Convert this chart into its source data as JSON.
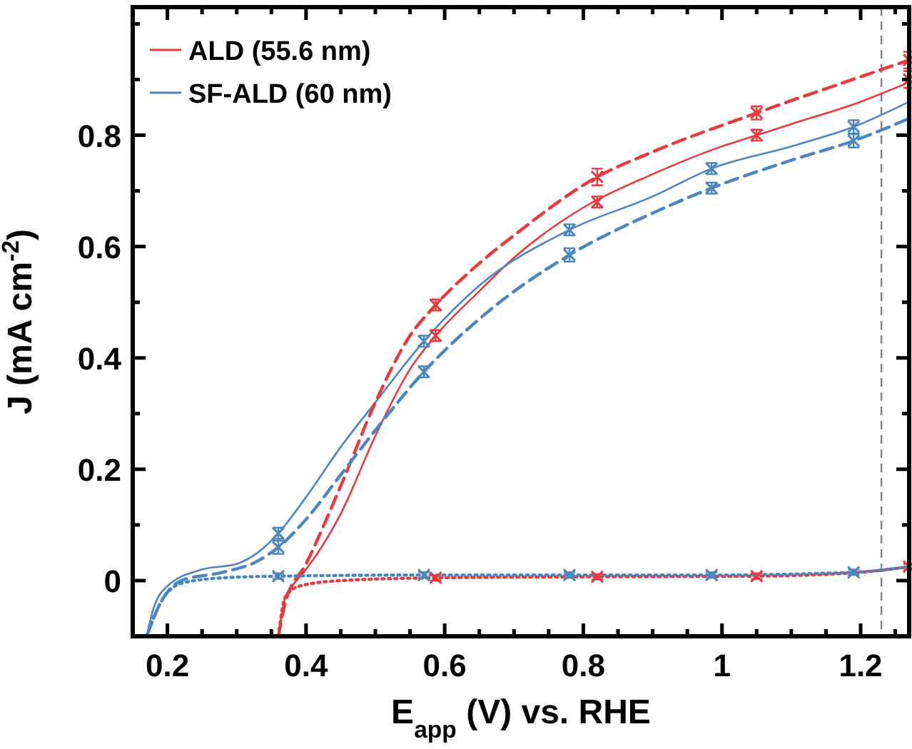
{
  "chart_data": {
    "type": "line",
    "xlabel": "E$_{app}$ (V) vs. RHE",
    "ylabel": "J (mA cm$^{-2}$)",
    "xlim": [
      0.15,
      1.27
    ],
    "ylim": [
      -0.1,
      1.03
    ],
    "xticks": [
      {
        "value": 0.15,
        "label": null
      },
      0.2,
      {
        "value": 0.25,
        "label": null
      },
      {
        "value": 0.3,
        "label": null
      },
      {
        "value": 0.35,
        "label": null
      },
      0.4,
      {
        "value": 0.45,
        "label": null
      },
      {
        "value": 0.5,
        "label": null
      },
      {
        "value": 0.55,
        "label": null
      },
      0.6,
      {
        "value": 0.65,
        "label": null
      },
      {
        "value": 0.7,
        "label": null
      },
      {
        "value": 0.75,
        "label": null
      },
      0.8,
      {
        "value": 0.85,
        "label": null
      },
      {
        "value": 0.9,
        "label": null
      },
      {
        "value": 0.95,
        "label": null
      },
      1,
      {
        "value": 1.05,
        "label": null
      },
      {
        "value": 1.1,
        "label": null
      },
      {
        "value": 1.15,
        "label": null
      },
      1.2,
      {
        "value": 1.25,
        "label": null
      }
    ],
    "yticks": [
      {
        "value": -0.1,
        "label": null
      },
      0,
      {
        "value": 0.1,
        "label": null
      },
      0.2,
      {
        "value": 0.3,
        "label": null
      },
      0.4,
      {
        "value": 0.5,
        "label": null
      },
      0.6,
      {
        "value": 0.7,
        "label": null
      },
      0.8,
      {
        "value": 0.9,
        "label": null
      },
      {
        "value": 1.0,
        "label": null
      }
    ],
    "legend": "top left",
    "grid": false,
    "ref_lines": [
      {
        "axis": "x",
        "value": 1.23,
        "color": "#808080",
        "line_style": "dashed"
      }
    ],
    "series": [
      {
        "name": "ALD (55.6 nm)",
        "color": "#e8393d",
        "line_style": "solid",
        "x": [
          0.36,
          0.37,
          0.38,
          0.4,
          0.45,
          0.5,
          0.55,
          0.587,
          0.65,
          0.7,
          0.8,
          0.9,
          1.0,
          1.05,
          1.1,
          1.2,
          1.27
        ],
        "values": [
          -0.1,
          -0.03,
          -0.01,
          0.02,
          0.12,
          0.26,
          0.38,
          0.44,
          0.52,
          0.58,
          0.67,
          0.73,
          0.78,
          0.8,
          0.82,
          0.86,
          0.895
        ]
      },
      {
        "name": "SF-ALD (60 nm)",
        "color": "#4a86c0",
        "line_style": "solid",
        "x": [
          0.17,
          0.18,
          0.2,
          0.25,
          0.3,
          0.33,
          0.36,
          0.4,
          0.45,
          0.5,
          0.57,
          0.65,
          0.78,
          0.9,
          0.985,
          1.1,
          1.19,
          1.27
        ],
        "values": [
          -0.1,
          -0.05,
          -0.01,
          0.02,
          0.03,
          0.05,
          0.085,
          0.15,
          0.24,
          0.32,
          0.43,
          0.53,
          0.63,
          0.69,
          0.74,
          0.78,
          0.815,
          0.86
        ]
      },
      {
        "color": "#e8393d",
        "line_style": "dashed",
        "x": [
          0.36,
          0.37,
          0.4,
          0.45,
          0.5,
          0.55,
          0.587,
          0.65,
          0.7,
          0.82,
          0.9,
          1.05,
          1.2,
          1.27
        ],
        "values": [
          -0.1,
          -0.04,
          0.03,
          0.17,
          0.32,
          0.44,
          0.495,
          0.57,
          0.62,
          0.725,
          0.77,
          0.84,
          0.905,
          0.935
        ]
      },
      {
        "color": "#4a86c0",
        "line_style": "dashed",
        "x": [
          0.17,
          0.19,
          0.22,
          0.28,
          0.33,
          0.36,
          0.4,
          0.45,
          0.5,
          0.57,
          0.65,
          0.78,
          0.9,
          0.985,
          1.1,
          1.19,
          1.27
        ],
        "values": [
          -0.1,
          -0.04,
          0,
          0.015,
          0.035,
          0.06,
          0.11,
          0.19,
          0.27,
          0.375,
          0.47,
          0.585,
          0.66,
          0.705,
          0.755,
          0.79,
          0.83
        ]
      },
      {
        "color": "#e8393d",
        "line_style": "dotted",
        "x": [
          0.36,
          0.37,
          0.39,
          0.45,
          0.587,
          0.82,
          1.05,
          1.2,
          1.27
        ],
        "values": [
          -0.1,
          -0.03,
          -0.01,
          0.0,
          0.005,
          0.007,
          0.008,
          0.015,
          0.025
        ]
      },
      {
        "color": "#4a86c0",
        "line_style": "dotted",
        "x": [
          0.17,
          0.19,
          0.22,
          0.28,
          0.36,
          0.57,
          0.78,
          0.985,
          1.19,
          1.27
        ],
        "values": [
          -0.1,
          -0.04,
          -0.005,
          0.005,
          0.008,
          0.01,
          0.01,
          0.01,
          0.015,
          0.025
        ]
      },
      {
        "type": "scatter",
        "marker": "cross",
        "color": "#e8393d",
        "x": [
          0.587,
          0.82,
          1.05,
          1.27,
          0.587,
          0.82,
          1.05,
          1.27,
          0.587,
          0.82,
          1.05,
          1.27
        ],
        "values": [
          0.44,
          0.68,
          0.8,
          0.9,
          0.495,
          0.725,
          0.84,
          0.935,
          0.005,
          0.007,
          0.008,
          0.025
        ],
        "errors": [
          0.01,
          0.01,
          0.01,
          0.015,
          0.01,
          0.015,
          0.012,
          0.015,
          0.005,
          0.005,
          0.005,
          0.005
        ]
      },
      {
        "type": "scatter",
        "marker": "cross",
        "color": "#4a86c0",
        "x": [
          0.36,
          0.57,
          0.78,
          0.985,
          1.19,
          0.36,
          0.57,
          0.78,
          0.985,
          1.19,
          0.36,
          0.57,
          0.78,
          0.985,
          1.19
        ],
        "values": [
          0.085,
          0.43,
          0.63,
          0.74,
          0.815,
          0.06,
          0.375,
          0.585,
          0.705,
          0.79,
          0.008,
          0.01,
          0.01,
          0.01,
          0.015
        ],
        "errors": [
          0.01,
          0.01,
          0.01,
          0.01,
          0.012,
          0.012,
          0.01,
          0.012,
          0.01,
          0.012,
          0.005,
          0.005,
          0.005,
          0.005,
          0.005
        ]
      }
    ]
  }
}
